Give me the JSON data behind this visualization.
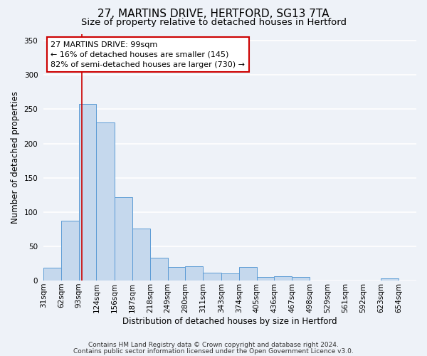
{
  "title": "27, MARTINS DRIVE, HERTFORD, SG13 7TA",
  "subtitle": "Size of property relative to detached houses in Hertford",
  "xlabel": "Distribution of detached houses by size in Hertford",
  "ylabel": "Number of detached properties",
  "footnote1": "Contains HM Land Registry data © Crown copyright and database right 2024.",
  "footnote2": "Contains public sector information licensed under the Open Government Licence v3.0.",
  "bar_left_edges": [
    31,
    62,
    93,
    124,
    156,
    187,
    218,
    249,
    280,
    311,
    343,
    374,
    405,
    436,
    467,
    498,
    529,
    561,
    592,
    623
  ],
  "bar_widths": [
    31,
    31,
    31,
    32,
    31,
    31,
    31,
    31,
    31,
    32,
    31,
    31,
    31,
    31,
    31,
    31,
    32,
    31,
    31,
    31
  ],
  "bar_heights": [
    19,
    87,
    258,
    231,
    122,
    76,
    33,
    20,
    21,
    11,
    10,
    20,
    5,
    6,
    5,
    0,
    0,
    0,
    0,
    3
  ],
  "bar_color": "#c5d8ed",
  "bar_edge_color": "#5b9bd5",
  "tick_labels": [
    "31sqm",
    "62sqm",
    "93sqm",
    "124sqm",
    "156sqm",
    "187sqm",
    "218sqm",
    "249sqm",
    "280sqm",
    "311sqm",
    "343sqm",
    "374sqm",
    "405sqm",
    "436sqm",
    "467sqm",
    "498sqm",
    "529sqm",
    "561sqm",
    "592sqm",
    "623sqm",
    "654sqm"
  ],
  "ylim": [
    0,
    360
  ],
  "yticks": [
    0,
    50,
    100,
    150,
    200,
    250,
    300,
    350
  ],
  "vline_x": 99,
  "vline_color": "#cc0000",
  "annotation_line1": "27 MARTINS DRIVE: 99sqm",
  "annotation_line2": "← 16% of detached houses are smaller (145)",
  "annotation_line3": "82% of semi-detached houses are larger (730) →",
  "annotation_box_color": "#ffffff",
  "annotation_box_edge_color": "#cc0000",
  "background_color": "#eef2f8",
  "grid_color": "#ffffff",
  "title_fontsize": 11,
  "subtitle_fontsize": 9.5,
  "footnote_fontsize": 6.5,
  "axis_label_fontsize": 8.5,
  "tick_fontsize": 7.5,
  "annotation_fontsize": 8.0
}
